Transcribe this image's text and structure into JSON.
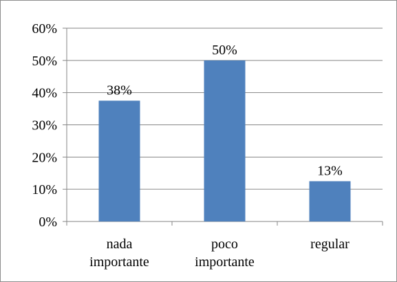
{
  "chart_data": {
    "type": "bar",
    "categories": [
      [
        "nada",
        "importante"
      ],
      [
        "poco",
        "importante"
      ],
      [
        "regular"
      ]
    ],
    "values": [
      37.5,
      50,
      12.5
    ],
    "data_labels": [
      "38%",
      "50%",
      "13%"
    ],
    "y_ticks": [
      "0%",
      "10%",
      "20%",
      "30%",
      "40%",
      "50%",
      "60%"
    ],
    "ylim": [
      0,
      60
    ],
    "grid": true,
    "legend": false,
    "bar_color": "#4f81bd",
    "gridline_color": "#868686",
    "axis_color": "#868686"
  }
}
